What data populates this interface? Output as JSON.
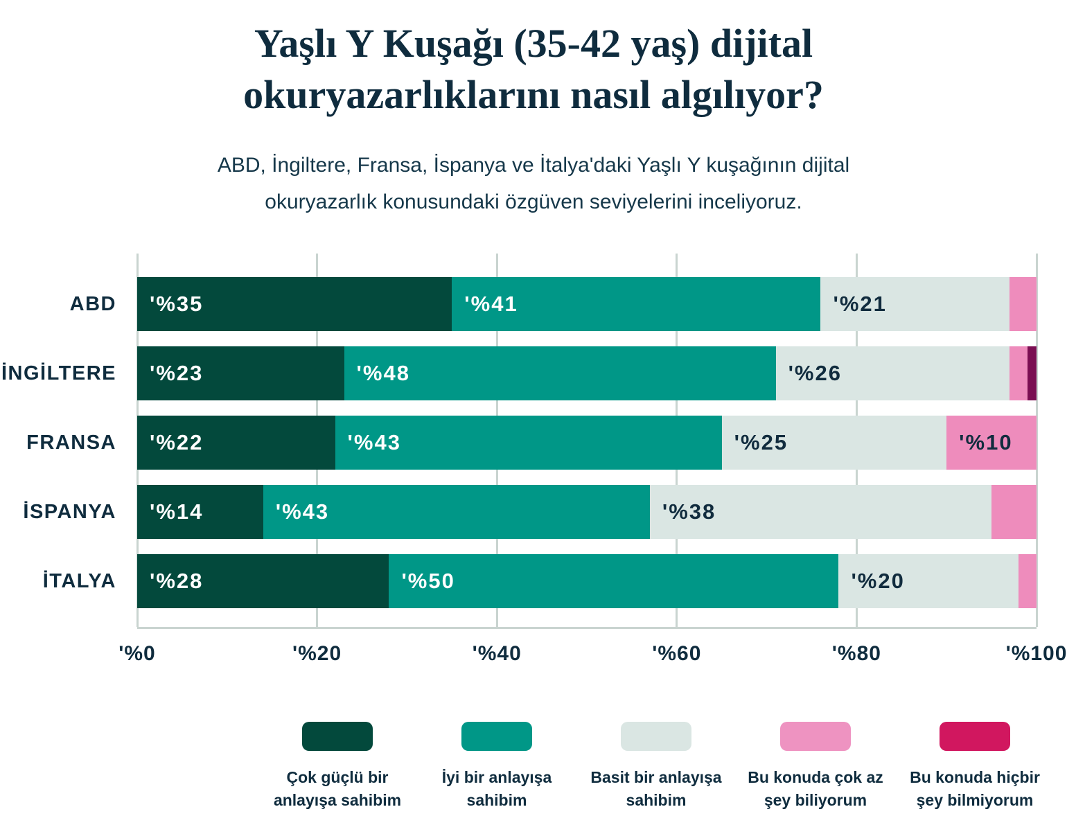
{
  "page": {
    "title_line1": "Yaşlı Y Kuşağı (35-42 yaş) dijital",
    "title_line2": "okuryazarlıklarını nasıl algılıyor?",
    "subtitle_line1": "ABD, İngiltere, Fransa, İspanya ve İtalya'daki Yaşlı Y kuşağının dijital",
    "subtitle_line2": "okuryazarlık konusundaki özgüven seviyelerini inceliyoruz.",
    "background_color": "#ffffff",
    "title_color": "#0F2C3E",
    "text_color": "#0F2C3E"
  },
  "chart_data": {
    "type": "bar",
    "orientation": "horizontal",
    "stacked": true,
    "title": "Yaşlı Y Kuşağı (35-42 yaş) dijital okuryazarlıklarını nasıl algılıyor?",
    "subtitle": "ABD, İngiltere, Fransa, İspanya ve İtalya'daki Yaşlı Y kuşağının dijital okuryazarlık konusundaki özgüven seviyelerini inceliyoruz.",
    "categories": [
      "ABD",
      "İNGİLTERE",
      "FRANSA",
      "İSPANYA",
      "İTALYA"
    ],
    "series": [
      {
        "name": "Çok güçlü bir anlayışa sahibim",
        "color": "#03493C",
        "label_color": "#FFFFFF",
        "values": [
          35,
          23,
          22,
          14,
          28
        ]
      },
      {
        "name": "İyi bir anlayışa sahibim",
        "color": "#009787",
        "label_color": "#FFFFFF",
        "values": [
          41,
          48,
          43,
          43,
          50
        ]
      },
      {
        "name": "Basit bir anlayışa sahibim",
        "color": "#DAE6E3",
        "label_color": "#112C3E",
        "values": [
          21,
          26,
          25,
          38,
          20
        ]
      },
      {
        "name": "Bu konuda çok az şey biliyorum",
        "color": "#EE8CBC",
        "label_color": "#112C3E",
        "values": [
          3,
          2,
          10,
          5,
          2
        ]
      },
      {
        "name": "Bu konuda hiçbir şey bilmiyorum",
        "color": "#7A0E52",
        "label_color": "#FFFFFF",
        "values": [
          0,
          1,
          0,
          0,
          0
        ]
      }
    ],
    "value_label_prefix": "'%",
    "value_label_min": 10,
    "x_ticks": [
      {
        "value": 0,
        "label": "'%0"
      },
      {
        "value": 20,
        "label": "'%20"
      },
      {
        "value": 40,
        "label": "'%40"
      },
      {
        "value": 60,
        "label": "'%60"
      },
      {
        "value": 80,
        "label": "'%80"
      },
      {
        "value": 100,
        "label": "'%100"
      }
    ],
    "xlim": [
      0,
      100
    ],
    "grid": true,
    "gridline_color": "#C9D4D0",
    "legend_position": "bottom"
  },
  "legend": {
    "items": [
      {
        "line1": "Çok güçlü bir",
        "line2": "anlayışa sahibim",
        "color": "#03493C"
      },
      {
        "line1": "İyi bir anlayışa",
        "line2": "sahibim",
        "color": "#009787"
      },
      {
        "line1": "Basit bir anlayışa",
        "line2": "sahibim",
        "color": "#DAE6E3"
      },
      {
        "line1": "Bu konuda çok az",
        "line2": "şey biliyorum",
        "color": "#EE93C1"
      },
      {
        "line1": "Bu konuda hiçbir",
        "line2": "şey bilmiyorum",
        "color": "#D1175F"
      }
    ]
  }
}
